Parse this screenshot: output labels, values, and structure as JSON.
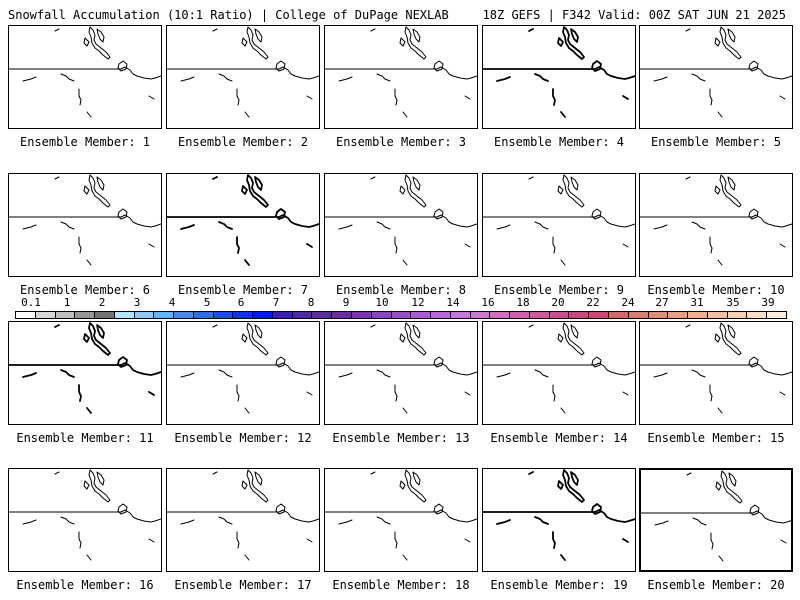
{
  "header": {
    "left_title": "Snowfall Accumulation (10:1 Ratio) | College of DuPage NEXLAB",
    "right_title": "18Z GEFS | F342 Valid: 00Z SAT JUN 21 2025"
  },
  "panels": [
    {
      "label": "Ensemble Member: 1"
    },
    {
      "label": "Ensemble Member: 2"
    },
    {
      "label": "Ensemble Member: 3"
    },
    {
      "label": "Ensemble Member: 4"
    },
    {
      "label": "Ensemble Member: 5"
    },
    {
      "label": "Ensemble Member: 6"
    },
    {
      "label": "Ensemble Member: 7"
    },
    {
      "label": "Ensemble Member: 8"
    },
    {
      "label": "Ensemble Member: 9"
    },
    {
      "label": "Ensemble Member: 10"
    },
    {
      "label": "Ensemble Member: 11"
    },
    {
      "label": "Ensemble Member: 12"
    },
    {
      "label": "Ensemble Member: 13"
    },
    {
      "label": "Ensemble Member: 14"
    },
    {
      "label": "Ensemble Member: 15"
    },
    {
      "label": "Ensemble Member: 16"
    },
    {
      "label": "Ensemble Member: 17"
    },
    {
      "label": "Ensemble Member: 18"
    },
    {
      "label": "Ensemble Member: 19"
    },
    {
      "label": "Ensemble Member: 20"
    }
  ],
  "colorbar": {
    "labels": [
      "0.1",
      "1",
      "2",
      "3",
      "4",
      "5",
      "6",
      "7",
      "8",
      "9",
      "10",
      "12",
      "14",
      "16",
      "18",
      "20",
      "22",
      "24",
      "27",
      "31",
      "35",
      "39"
    ],
    "colors": [
      "#ffffff",
      "#d9d9d9",
      "#bdbdbd",
      "#969696",
      "#737373",
      "#b3e5fc",
      "#90caf9",
      "#64b5f6",
      "#4a86e8",
      "#2f6fe0",
      "#1c4fd8",
      "#1033e6",
      "#0016ff",
      "#3a1fb0",
      "#4d2aa0",
      "#5b2d98",
      "#6a2ea0",
      "#7b35b0",
      "#8b44c0",
      "#9c50c8",
      "#aa5cd0",
      "#b86ad8",
      "#c478dc",
      "#cc7cd0",
      "#d070c0",
      "#d062b0",
      "#cc5aa0",
      "#c85090",
      "#c94880",
      "#cd4a78",
      "#d06a6a",
      "#d88070",
      "#e09078",
      "#e8a080",
      "#efb090",
      "#f3c0a0",
      "#f7d0b0",
      "#fbe0c4",
      "#fff0dc"
    ]
  }
}
